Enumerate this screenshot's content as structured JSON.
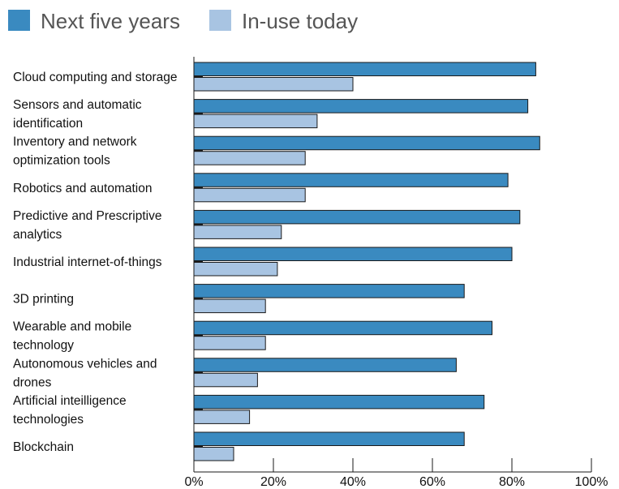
{
  "chart_data": {
    "type": "bar",
    "orientation": "horizontal",
    "categories": [
      [
        "Cloud computing and storage"
      ],
      [
        "Sensors and automatic",
        "identification"
      ],
      [
        "Inventory and network",
        "optimization tools"
      ],
      [
        "Robotics and automation"
      ],
      [
        "Predictive and Prescriptive",
        "analytics"
      ],
      [
        "Industrial internet-of-things"
      ],
      [
        "3D printing"
      ],
      [
        "Wearable and mobile",
        "technology"
      ],
      [
        "Autonomous vehicles and",
        "drones"
      ],
      [
        "Artificial inteilligence",
        "technologies"
      ],
      [
        "Blockchain"
      ]
    ],
    "series": [
      {
        "name": "Next five years",
        "color": "#3A8AC0",
        "values": [
          86,
          84,
          87,
          79,
          82,
          80,
          68,
          75,
          66,
          73,
          68
        ]
      },
      {
        "name": "In-use today",
        "color": "#A8C4E2",
        "values": [
          40,
          31,
          28,
          28,
          22,
          21,
          18,
          18,
          16,
          14,
          10
        ]
      }
    ],
    "xlim": [
      0,
      100
    ],
    "x_ticks": [
      0,
      20,
      40,
      60,
      80,
      100
    ],
    "tick_suffix": "%",
    "legend_position": "top-left",
    "grid": false
  }
}
